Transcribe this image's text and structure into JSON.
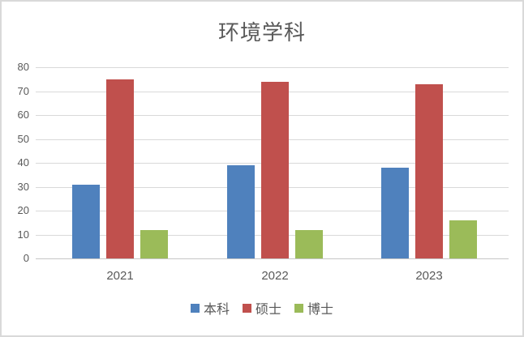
{
  "chart_data": {
    "type": "bar",
    "title": "环境学科",
    "categories": [
      "2021",
      "2022",
      "2023"
    ],
    "series": [
      {
        "name": "本科",
        "color": "#4F81BD",
        "values": [
          31,
          39,
          38
        ]
      },
      {
        "name": "硕士",
        "color": "#C0504D",
        "values": [
          75,
          74,
          73
        ]
      },
      {
        "name": "博士",
        "color": "#9BBB59",
        "values": [
          12,
          12,
          16
        ]
      }
    ],
    "ylim": [
      0,
      80
    ],
    "yticks": [
      0,
      10,
      20,
      30,
      40,
      50,
      60,
      70,
      80
    ],
    "grid": true,
    "legend_position": "bottom",
    "xlabel": "",
    "ylabel": ""
  },
  "colors": {
    "background": "#FFFFFF",
    "border": "#D9D9D9",
    "grid": "#D9D9D9",
    "axis": "#C6C6C6",
    "text": "#595959"
  }
}
